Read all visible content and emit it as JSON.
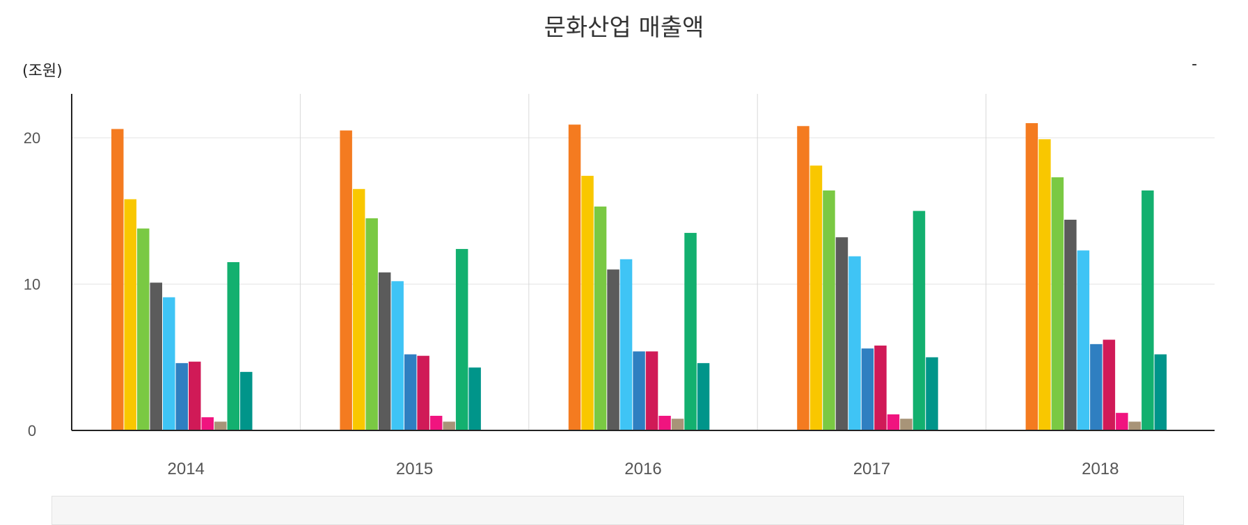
{
  "chart_data": {
    "type": "bar",
    "title": "문화산업 매출액",
    "unit_label": "(조원)",
    "corner_mark": "-",
    "categories": [
      "2014",
      "2015",
      "2016",
      "2017",
      "2018"
    ],
    "ylim": [
      0,
      23
    ],
    "yticks": [
      0,
      10,
      20
    ],
    "grid": true,
    "series": [
      {
        "color": "#f47b20",
        "values": [
          20.6,
          20.5,
          20.9,
          20.8,
          21.0
        ]
      },
      {
        "color": "#f9c700",
        "values": [
          15.8,
          16.5,
          17.4,
          18.1,
          19.9
        ]
      },
      {
        "color": "#7ac943",
        "values": [
          13.8,
          14.5,
          15.3,
          16.4,
          17.3
        ]
      },
      {
        "color": "#5b5b5b",
        "values": [
          10.1,
          10.8,
          11.0,
          13.2,
          14.4
        ]
      },
      {
        "color": "#3fc4f5",
        "values": [
          9.1,
          10.2,
          11.7,
          11.9,
          12.3
        ]
      },
      {
        "color": "#2f7fc1",
        "values": [
          4.6,
          5.2,
          5.4,
          5.6,
          5.9
        ]
      },
      {
        "color": "#d01a57",
        "values": [
          4.7,
          5.1,
          5.4,
          5.8,
          6.2
        ]
      },
      {
        "color": "#f0147f",
        "values": [
          0.9,
          1.0,
          1.0,
          1.1,
          1.2
        ]
      },
      {
        "color": "#a89478",
        "values": [
          0.6,
          0.6,
          0.8,
          0.8,
          0.6
        ]
      },
      {
        "color": "#13b06f",
        "values": [
          11.5,
          12.4,
          13.5,
          15.0,
          16.4
        ]
      },
      {
        "color": "#00958a",
        "values": [
          4.0,
          4.3,
          4.6,
          5.0,
          5.2
        ]
      }
    ]
  }
}
